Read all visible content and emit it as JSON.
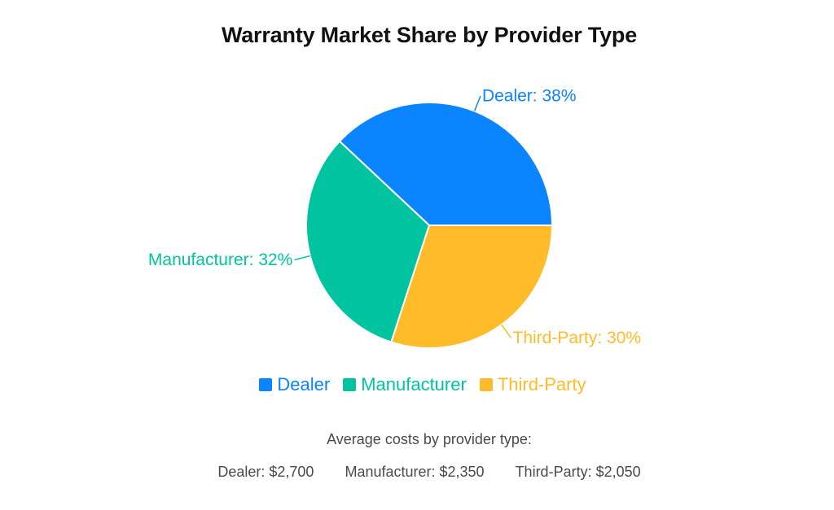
{
  "chart_data": {
    "type": "pie",
    "title": "Warranty Market Share by Provider Type",
    "slices": [
      {
        "name": "Dealer",
        "value": 38,
        "label": "Dealer: 38%",
        "color": "#0a84ff"
      },
      {
        "name": "Manufacturer",
        "value": 32,
        "label": "Manufacturer: 32%",
        "color": "#00c49f"
      },
      {
        "name": "Third-Party",
        "value": 30,
        "label": "Third-Party: 30%",
        "color": "#ffbb28"
      }
    ],
    "legend": {
      "placement": "bottom",
      "items": [
        {
          "label": "Dealer",
          "color": "#0a84ff"
        },
        {
          "label": "Manufacturer",
          "color": "#00c49f"
        },
        {
          "label": "Third-Party",
          "color": "#ffbb28"
        }
      ]
    }
  },
  "footnote": {
    "heading": "Average costs by provider type:",
    "costs": [
      "Dealer: $2,700",
      "Manufacturer: $2,350",
      "Third-Party: $2,050"
    ]
  }
}
